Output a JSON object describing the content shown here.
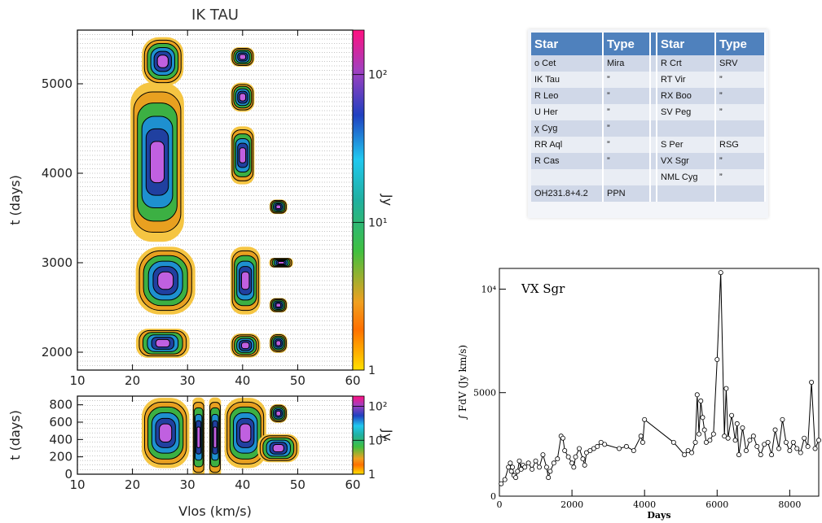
{
  "chart_data": [
    {
      "type": "heatmap",
      "title": "IK TAU",
      "xlabel": "",
      "ylabel": "t (days)",
      "xlim": [
        10,
        60
      ],
      "ylim": [
        1800,
        5600
      ],
      "xticks": [
        "10",
        "20",
        "30",
        "40",
        "50",
        "60"
      ],
      "yticks": [
        "2000",
        "3000",
        "4000",
        "5000"
      ],
      "colorbar": {
        "label": "Jy",
        "scale": "log",
        "range": [
          1,
          200
        ],
        "ticks": [
          "1",
          "10¹",
          "10²"
        ]
      },
      "features": [
        {
          "v_range": [
            21,
            30
          ],
          "t_range": [
            1950,
            2250
          ]
        },
        {
          "v_range": [
            21,
            31
          ],
          "t_range": [
            2450,
            3150
          ]
        },
        {
          "v_range": [
            20,
            29
          ],
          "t_range": [
            3300,
            4950
          ]
        },
        {
          "v_range": [
            22,
            29
          ],
          "t_range": [
            5000,
            5500
          ]
        },
        {
          "v_range": [
            38,
            43
          ],
          "t_range": [
            1950,
            2200
          ]
        },
        {
          "v_range": [
            38,
            43
          ],
          "t_range": [
            2450,
            3150
          ]
        },
        {
          "v_range": [
            38,
            42
          ],
          "t_range": [
            3900,
            4500
          ]
        },
        {
          "v_range": [
            38,
            42
          ],
          "t_range": [
            4700,
            5000
          ]
        },
        {
          "v_range": [
            38,
            42
          ],
          "t_range": [
            5200,
            5400
          ]
        },
        {
          "v_range": [
            45,
            48
          ],
          "t_range": [
            2000,
            2200
          ]
        },
        {
          "v_range": [
            45,
            48
          ],
          "t_range": [
            2450,
            2600
          ]
        },
        {
          "v_range": [
            45,
            49
          ],
          "t_range": [
            2950,
            3050
          ]
        },
        {
          "v_range": [
            45,
            48
          ],
          "t_range": [
            3550,
            3700
          ]
        }
      ]
    },
    {
      "type": "heatmap",
      "title": "",
      "xlabel": "Vlos (km/s)",
      "ylabel": "t (days)",
      "xlim": [
        10,
        60
      ],
      "ylim": [
        0,
        900
      ],
      "xticks": [
        "10",
        "20",
        "30",
        "40",
        "50",
        "60"
      ],
      "yticks": [
        "0",
        "200",
        "400",
        "600",
        "800"
      ],
      "colorbar": {
        "label": "Jy",
        "scale": "log",
        "range": [
          1,
          200
        ],
        "ticks": [
          "1",
          "10¹",
          "10²"
        ]
      },
      "features": [
        {
          "v_range": [
            22,
            30
          ],
          "t_range": [
            100,
            850
          ]
        },
        {
          "v_range": [
            31,
            33
          ],
          "t_range": [
            0,
            850
          ]
        },
        {
          "v_range": [
            34,
            36
          ],
          "t_range": [
            0,
            850
          ]
        },
        {
          "v_range": [
            37,
            44
          ],
          "t_range": [
            100,
            850
          ]
        },
        {
          "v_range": [
            43,
            50
          ],
          "t_range": [
            150,
            450
          ]
        },
        {
          "v_range": [
            45,
            48
          ],
          "t_range": [
            600,
            800
          ]
        }
      ]
    },
    {
      "type": "line",
      "title": "VX Sgr",
      "xlabel": "Days",
      "ylabel": "∫ FdV (Jy km/s)",
      "xlim": [
        0,
        8800
      ],
      "ylim": [
        0,
        11000
      ],
      "xticks": [
        "0",
        "2000",
        "4000",
        "6000",
        "8000"
      ],
      "yticks": [
        "0",
        "5000",
        "10⁴"
      ],
      "grid": false,
      "x": [
        50,
        150,
        250,
        300,
        330,
        360,
        400,
        450,
        500,
        550,
        600,
        650,
        700,
        800,
        900,
        1000,
        1100,
        1200,
        1300,
        1350,
        1400,
        1500,
        1600,
        1700,
        1750,
        1800,
        1900,
        2000,
        2050,
        2100,
        2200,
        2300,
        2350,
        2400,
        2500,
        2600,
        2700,
        2800,
        2900,
        3300,
        3500,
        3700,
        3900,
        3950,
        4000,
        4800,
        5100,
        5200,
        5300,
        5400,
        5450,
        5500,
        5550,
        5600,
        5650,
        5700,
        5800,
        5900,
        6000,
        6100,
        6200,
        6250,
        6300,
        6400,
        6500,
        6550,
        6600,
        6700,
        6800,
        6900,
        7000,
        7100,
        7200,
        7300,
        7400,
        7500,
        7600,
        7700,
        7800,
        7900,
        8000,
        8100,
        8200,
        8300,
        8400,
        8500,
        8600,
        8700,
        8800
      ],
      "values": [
        600,
        800,
        1400,
        1600,
        1200,
        1400,
        1000,
        900,
        1200,
        1700,
        1300,
        1500,
        1400,
        1600,
        1300,
        1700,
        1400,
        2000,
        1400,
        900,
        1200,
        1600,
        1800,
        2900,
        2800,
        2200,
        1900,
        1600,
        1400,
        1900,
        2300,
        1800,
        1500,
        2100,
        2200,
        2300,
        2400,
        2600,
        2500,
        2300,
        2400,
        2200,
        2900,
        2600,
        3700,
        2600,
        2000,
        2200,
        2100,
        2600,
        4900,
        3000,
        4600,
        3800,
        3200,
        2600,
        2700,
        3000,
        6600,
        10800,
        2900,
        5200,
        2800,
        3900,
        2700,
        3500,
        2000,
        3300,
        2200,
        2700,
        2900,
        2400,
        2000,
        2500,
        2600,
        2000,
        3200,
        2300,
        3700,
        2600,
        2200,
        2600,
        2300,
        2100,
        2800,
        2400,
        5500,
        2300,
        2700
      ]
    },
    {
      "type": "table",
      "columns": [
        "Star",
        "Type",
        "Star",
        "Type"
      ],
      "rows": [
        [
          "o Cet",
          "Mira",
          "R Crt",
          "SRV"
        ],
        [
          "IK Tau",
          "”",
          "RT Vir",
          "”"
        ],
        [
          "R Leo",
          "”",
          "RX Boo",
          "”"
        ],
        [
          "U Her",
          "”",
          "SV Peg",
          "”"
        ],
        [
          "χ Cyg",
          "”",
          "",
          ""
        ],
        [
          "RR Aql",
          "”",
          "S Per",
          "RSG"
        ],
        [
          "R Cas",
          "”",
          "VX Sgr",
          "”"
        ],
        [
          "",
          "",
          "NML Cyg",
          "”"
        ],
        [
          "OH231.8+4.2",
          "PPN",
          "",
          ""
        ]
      ]
    }
  ],
  "colors": {
    "spec_stops": [
      "#f5c542",
      "#e8a020",
      "#3cb043",
      "#1e90d0",
      "#2040a0",
      "#c060e0",
      "#ffffff"
    ],
    "colorbar_stops": [
      "#ffe000",
      "#ff6000",
      "#40c040",
      "#20a0a0",
      "#20c0e0",
      "#2040c0",
      "#a040c0",
      "#ff1080"
    ],
    "table_header": "#4f81bd",
    "table_row_odd": "#d0d8e8",
    "table_row_even": "#e9edf4"
  }
}
